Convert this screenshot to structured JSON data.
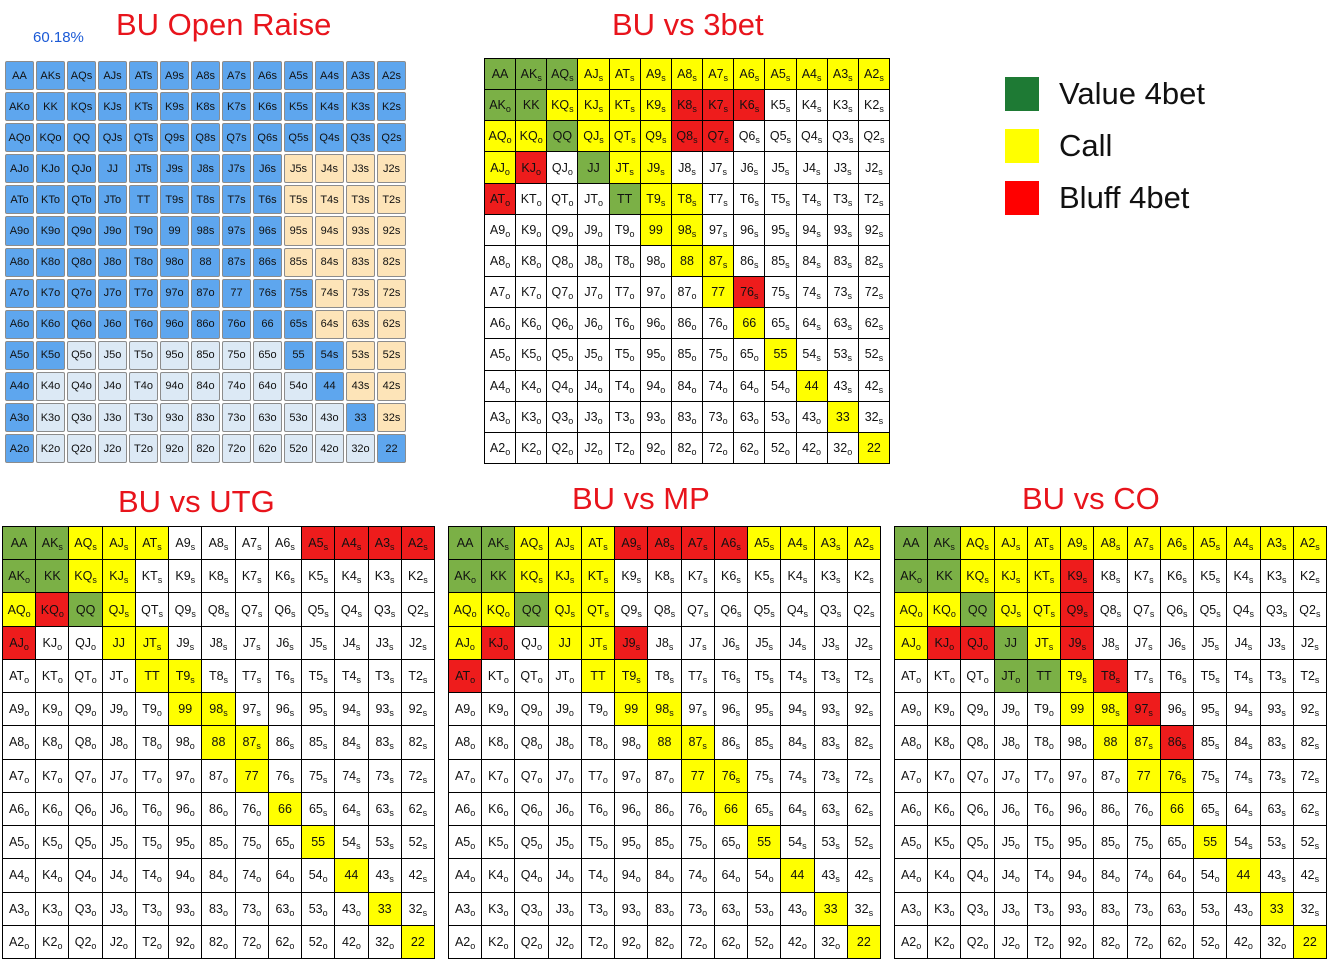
{
  "titles": {
    "open": "BU Open Raise",
    "vs3bet": "BU vs 3bet",
    "utg": "BU vs UTG",
    "mp": "BU vs MP",
    "co": "BU vs CO"
  },
  "open_percent": "60.18%",
  "legend": [
    {
      "label": "Value 4bet",
      "color": "#1e7a34"
    },
    {
      "label": "Call",
      "color": "#ffff00"
    },
    {
      "label": "Bluff 4bet",
      "color": "#ff0000"
    }
  ],
  "colors": {
    "open_raise": "#5ea6ee",
    "open_light": "#fde4b8",
    "open_fold": "#dce9f5",
    "value": "#7bb046",
    "call": "#ffff00",
    "bluff": "#ee1c1c",
    "fold": "#ffffff"
  },
  "ranks": [
    "A",
    "K",
    "Q",
    "J",
    "T",
    "9",
    "8",
    "7",
    "6",
    "5",
    "4",
    "3",
    "2"
  ],
  "matrices": {
    "open": [
      "RRRRRRRRRRRRR",
      "RRRRRRRRRRRRR",
      "RRRRRRRRRRRRR",
      "RRRRRRRRRLLLL",
      "RRRRRRRRRLLLL",
      "RRRRRRRRRLLLL",
      "RRRRRRRRRLLLL",
      "RRRRRRRRRRLLL",
      "RRRRRRRRRRLLL",
      "RRFFFFFFFRRLL",
      "RFFFFFFFFFRLL",
      "RFFFFFFFFFFRL",
      "RFFFFFFFFFFFR"
    ],
    "vs3bet": [
      "VVVCCCCCCCCCC",
      "VVCCCCBBBFFFF",
      "CCVCCCBBFFFFF",
      "CBFVCCFFFFFFF",
      "BFFFVCCFFFFFF",
      "FFFFFCCFFFFFF",
      "FFFFFFCCFFFFF",
      "FFFFFFFCBFFFF",
      "FFFFFFFFCFFFF",
      "FFFFFFFFFCFFF",
      "FFFFFFFFFFCFF",
      "FFFFFFFFFFFCF",
      "FFFFFFFFFFFFC"
    ],
    "utg": [
      "VVCCCFFFFBBBB",
      "VVCCFFFFFFFFF",
      "CBVCFFFFFFFFF",
      "BFFCCFFFFFFFF",
      "FFFFCCFFFFFFF",
      "FFFFFCCFFFFFF",
      "FFFFFFCCFFFFF",
      "FFFFFFFCFFFFF",
      "FFFFFFFFCFFFF",
      "FFFFFFFFFCFFF",
      "FFFFFFFFFFCFF",
      "FFFFFFFFFFFCF",
      "FFFFFFFFFFFFC"
    ],
    "mp": [
      "VVCCCBBBBCCCC",
      "VVCCCFFFFFFFF",
      "CCVCCFFFFFFFF",
      "CBFCCBFFFFFFF",
      "BFFFCCFFFFFFF",
      "FFFFFCCFFFFFF",
      "FFFFFFCCFFFFF",
      "FFFFFFFCCFFFF",
      "FFFFFFFFCFFFF",
      "FFFFFFFFFCFFF",
      "FFFFFFFFFFCFF",
      "FFFFFFFFFFFCF",
      "FFFFFFFFFFFFC"
    ],
    "co": [
      "VVCCCCCCCCCCC",
      "VVCCCBFFFFFFF",
      "CCVCCBFFFFFFF",
      "CBBVCBFFFFFFF",
      "FFFVVCBFFFFFF",
      "FFFFFCCBFFFFF",
      "FFFFFFCCBFFFF",
      "FFFFFFFCCFFFF",
      "FFFFFFFFCFFFF",
      "FFFFFFFFFCFFF",
      "FFFFFFFFFFCFF",
      "FFFFFFFFFFFCF",
      "FFFFFFFFFFFFC"
    ]
  }
}
